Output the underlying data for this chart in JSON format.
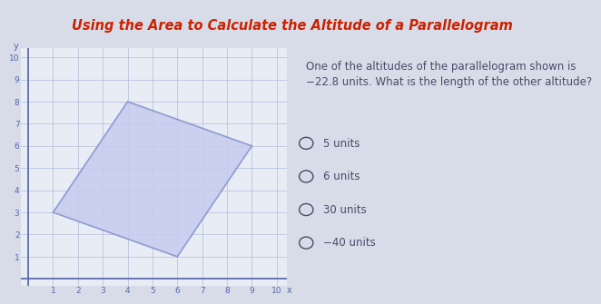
{
  "title": "Using the Area to Calculate the Altitude of a Parallelogram",
  "title_color": "#cc2200",
  "title_fontsize": 10.5,
  "parallelogram_vertices": [
    [
      1,
      3
    ],
    [
      4,
      8
    ],
    [
      9,
      6
    ],
    [
      6,
      1
    ]
  ],
  "parallelogram_fill": "#c8ccee",
  "parallelogram_edge": "#8090cc",
  "grid_color": "#b0bcd8",
  "axis_color": "#5566aa",
  "xlim": [
    -0.3,
    10.4
  ],
  "ylim": [
    -0.3,
    10.4
  ],
  "xticks": [
    1,
    2,
    3,
    4,
    5,
    6,
    7,
    8,
    9,
    10
  ],
  "yticks": [
    1,
    2,
    3,
    4,
    5,
    6,
    7,
    8,
    9,
    10
  ],
  "xlabel": "x",
  "ylabel": "y",
  "question_line1": "One of the altitudes of the parallelogram shown is",
  "question_line2": "−22.8 units. What is the length of the other altitude?",
  "choices": [
    "5 units",
    "6 units",
    "30 units",
    "−40 units"
  ],
  "text_color": "#4a4a6a",
  "question_fontsize": 8.5,
  "choice_fontsize": 8.5,
  "fig_bg": "#d8dce8",
  "title_bg": "#cdd3e8",
  "graph_bg": "#e8ecf5",
  "right_bg": "#e2e4ef",
  "tick_fontsize": 6.5
}
